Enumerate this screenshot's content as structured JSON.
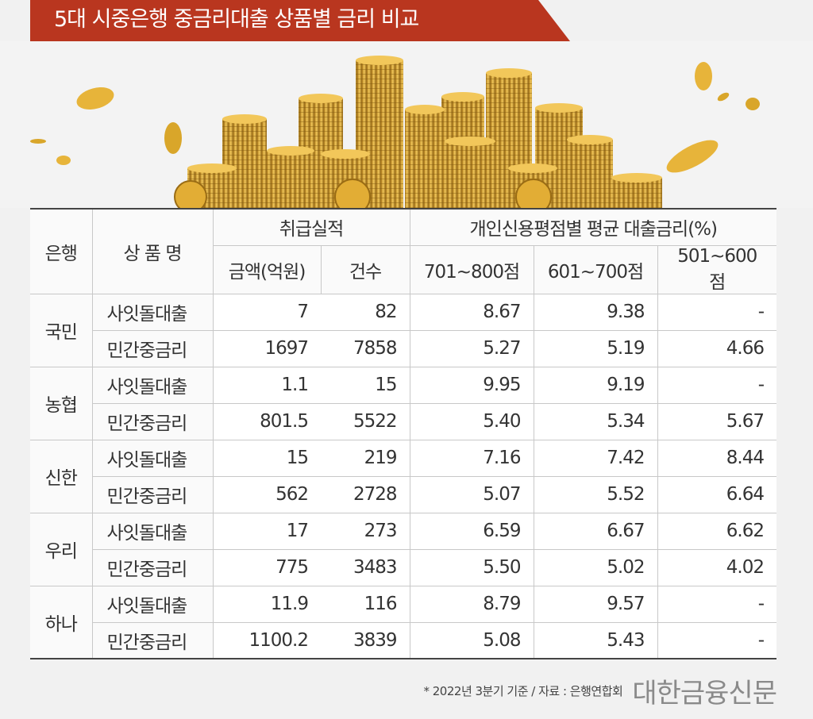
{
  "title": "5대 시중은행 중금리대출 상품별 금리 비교",
  "table": {
    "header": {
      "bank": "은행",
      "product": "상 품 명",
      "performance": "취급실적",
      "amount": "금액(억원)",
      "count": "건수",
      "rate_group": "개인신용평점별 평균 대출금리(%)",
      "score1": "701~800점",
      "score2": "601~700점",
      "score3": "501~600점"
    },
    "banks": [
      {
        "name": "국민",
        "rows": [
          {
            "product": "사잇돌대출",
            "amount": "7",
            "count": "82",
            "r1": "8.67",
            "r2": "9.38",
            "r3": "-"
          },
          {
            "product": "민간중금리",
            "amount": "1697",
            "count": "7858",
            "r1": "5.27",
            "r2": "5.19",
            "r3": "4.66"
          }
        ]
      },
      {
        "name": "농협",
        "rows": [
          {
            "product": "사잇돌대출",
            "amount": "1.1",
            "count": "15",
            "r1": "9.95",
            "r2": "9.19",
            "r3": "-"
          },
          {
            "product": "민간중금리",
            "amount": "801.5",
            "count": "5522",
            "r1": "5.40",
            "r2": "5.34",
            "r3": "5.67"
          }
        ]
      },
      {
        "name": "신한",
        "rows": [
          {
            "product": "사잇돌대출",
            "amount": "15",
            "count": "219",
            "r1": "7.16",
            "r2": "7.42",
            "r3": "8.44"
          },
          {
            "product": "민간중금리",
            "amount": "562",
            "count": "2728",
            "r1": "5.07",
            "r2": "5.52",
            "r3": "6.64"
          }
        ]
      },
      {
        "name": "우리",
        "rows": [
          {
            "product": "사잇돌대출",
            "amount": "17",
            "count": "273",
            "r1": "6.59",
            "r2": "6.67",
            "r3": "6.62"
          },
          {
            "product": "민간중금리",
            "amount": "775",
            "count": "3483",
            "r1": "5.50",
            "r2": "5.02",
            "r3": "4.02"
          }
        ]
      },
      {
        "name": "하나",
        "rows": [
          {
            "product": "사잇돌대출",
            "amount": "11.9",
            "count": "116",
            "r1": "8.79",
            "r2": "9.57",
            "r3": "-"
          },
          {
            "product": "민간중금리",
            "amount": "1100.2",
            "count": "3839",
            "r1": "5.08",
            "r2": "5.43",
            "r3": "-"
          }
        ]
      }
    ]
  },
  "footer": {
    "source": "* 2022년 3분기 기준 / 자료 : 은행연합회",
    "logo": "대한금융신문"
  },
  "colors": {
    "banner": "#b9361f",
    "coin_gold": "#d9a62a",
    "background": "#f1f1f1"
  },
  "chart_data": {
    "type": "table",
    "title": "5대 시중은행 중금리대출 상품별 금리 비교",
    "columns": [
      "은행",
      "상 품 명",
      "금액(억원)",
      "건수",
      "701~800점",
      "601~700점",
      "501~600점"
    ],
    "rows": [
      [
        "국민",
        "사잇돌대출",
        7,
        82,
        8.67,
        9.38,
        null
      ],
      [
        "국민",
        "민간중금리",
        1697,
        7858,
        5.27,
        5.19,
        4.66
      ],
      [
        "농협",
        "사잇돌대출",
        1.1,
        15,
        9.95,
        9.19,
        null
      ],
      [
        "농협",
        "민간중금리",
        801.5,
        5522,
        5.4,
        5.34,
        5.67
      ],
      [
        "신한",
        "사잇돌대출",
        15,
        219,
        7.16,
        7.42,
        8.44
      ],
      [
        "신한",
        "민간중금리",
        562,
        2728,
        5.07,
        5.52,
        6.64
      ],
      [
        "우리",
        "사잇돌대출",
        17,
        273,
        6.59,
        6.67,
        6.62
      ],
      [
        "우리",
        "민간중금리",
        775,
        3483,
        5.5,
        5.02,
        4.02
      ],
      [
        "하나",
        "사잇돌대출",
        11.9,
        116,
        8.79,
        9.57,
        null
      ],
      [
        "하나",
        "민간중금리",
        1100.2,
        3839,
        5.08,
        5.43,
        null
      ]
    ]
  }
}
